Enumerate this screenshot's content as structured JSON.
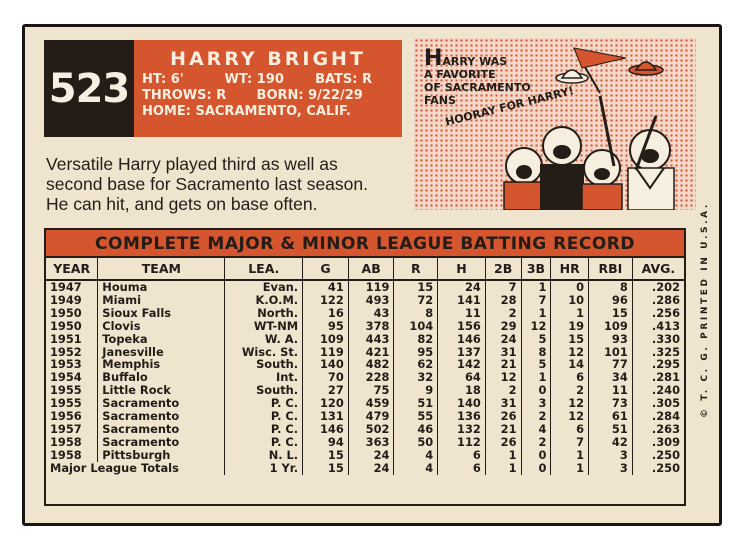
{
  "card_number": "523",
  "player": {
    "name": "HARRY BRIGHT",
    "height": "HT: 6'",
    "weight": "WT: 190",
    "bats": "BATS: R",
    "throws": "THROWS: R",
    "born": "BORN: 9/22/29",
    "home": "HOME: SACRAMENTO, CALIF."
  },
  "cartoon": {
    "caption_initial": "H",
    "caption_rest_1": "ARRY WAS",
    "caption_2": "A FAVORITE",
    "caption_3": "OF SACRAMENTO",
    "caption_4": "FANS",
    "shout": "HOORAY FOR HARRY!"
  },
  "bio": {
    "line1": "Versatile Harry played third as well as",
    "line2": "second base for Sacramento last season.",
    "line3": "He can hit, and gets on base often."
  },
  "copyright": "© T. C. G. PRINTED IN U.S.A.",
  "table": {
    "title": "COMPLETE MAJOR & MINOR LEAGUE BATTING RECORD",
    "headers": [
      "YEAR",
      "TEAM",
      "LEA.",
      "G",
      "AB",
      "R",
      "H",
      "2B",
      "3B",
      "HR",
      "RBI",
      "AVG."
    ],
    "rows": [
      [
        "1947",
        "Houma",
        "Evan.",
        "41",
        "119",
        "15",
        "24",
        "7",
        "1",
        "0",
        "8",
        ".202"
      ],
      [
        "1949",
        "Miami",
        "K.O.M.",
        "122",
        "493",
        "72",
        "141",
        "28",
        "7",
        "10",
        "96",
        ".286"
      ],
      [
        "1950",
        "Sioux Falls",
        "North.",
        "16",
        "43",
        "8",
        "11",
        "2",
        "1",
        "1",
        "15",
        ".256"
      ],
      [
        "1950",
        "Clovis",
        "WT-NM",
        "95",
        "378",
        "104",
        "156",
        "29",
        "12",
        "19",
        "109",
        ".413"
      ],
      [
        "1951",
        "Topeka",
        "W. A.",
        "109",
        "443",
        "82",
        "146",
        "24",
        "5",
        "15",
        "93",
        ".330"
      ],
      [
        "1952",
        "Janesville",
        "Wisc. St.",
        "119",
        "421",
        "95",
        "137",
        "31",
        "8",
        "12",
        "101",
        ".325"
      ],
      [
        "1953",
        "Memphis",
        "South.",
        "140",
        "482",
        "62",
        "142",
        "21",
        "5",
        "14",
        "77",
        ".295"
      ],
      [
        "1954",
        "Buffalo",
        "Int.",
        "70",
        "228",
        "32",
        "64",
        "12",
        "1",
        "6",
        "34",
        ".281"
      ],
      [
        "1955",
        "Little Rock",
        "South.",
        "27",
        "75",
        "9",
        "18",
        "2",
        "0",
        "2",
        "11",
        ".240"
      ],
      [
        "1955",
        "Sacramento",
        "P. C.",
        "120",
        "459",
        "51",
        "140",
        "31",
        "3",
        "12",
        "73",
        ".305"
      ],
      [
        "1956",
        "Sacramento",
        "P. C.",
        "131",
        "479",
        "55",
        "136",
        "26",
        "2",
        "12",
        "61",
        ".284"
      ],
      [
        "1957",
        "Sacramento",
        "P. C.",
        "146",
        "502",
        "46",
        "132",
        "21",
        "4",
        "6",
        "51",
        ".263"
      ],
      [
        "1958",
        "Sacramento",
        "P. C.",
        "94",
        "363",
        "50",
        "112",
        "26",
        "2",
        "7",
        "42",
        ".309"
      ],
      [
        "1958",
        "Pittsburgh",
        "N. L.",
        "15",
        "24",
        "4",
        "6",
        "1",
        "0",
        "1",
        "3",
        ".250"
      ]
    ],
    "totals": [
      "Major League Totals",
      "1 Yr.",
      "15",
      "24",
      "4",
      "6",
      "1",
      "0",
      "1",
      "3",
      ".250"
    ]
  },
  "colors": {
    "card_bg": "#efe5cf",
    "accent_orange": "#d4552e",
    "ink": "#231c17"
  }
}
